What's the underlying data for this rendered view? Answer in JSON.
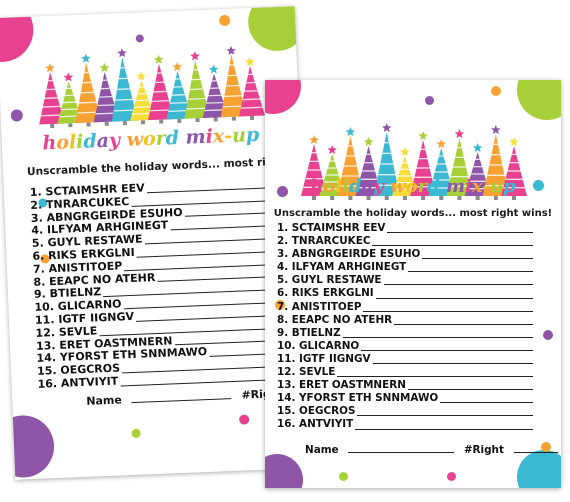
{
  "card": {
    "title": "holiday word mix-up",
    "subtitle": "Unscramble the holiday words... most right wins!",
    "words": [
      "1. SCTAIMSHR EEV",
      "2. TNRARCUKEC",
      "3. ABNGRGEIRDE ESUHO",
      "4. ILFYAM ARHGINEGT",
      "5. GUYL RESTAWE",
      "6. RIKS ERKGLNI",
      "7. ANISTITOEP",
      "8. EEAPC NO ATEHR",
      "9. BTIELNZ",
      "10. GLICARNO",
      "11. IGTF IIGNGV",
      "12. SEVLE",
      "13. ERET OASTMNERN",
      "14. YFORST ETH SNNMAWO",
      "15. OEGCROS",
      "16. ANTVIYIT"
    ],
    "name_label": "Name",
    "right_label": "#Right"
  },
  "colors": {
    "pink": "#e8418f",
    "lime": "#a6cf38",
    "orange": "#f6a132",
    "purple": "#8f55a8",
    "teal": "#3cb9d2",
    "yellow": "#f5dd3c",
    "title_colors": [
      "#e8418f",
      "#f6a132",
      "#f5c21d",
      "#a6cf38",
      "#3cb9d2",
      "#8f55a8"
    ]
  },
  "icons": [
    "christmas-tree-icon",
    "star-icon",
    "polka-dot"
  ]
}
